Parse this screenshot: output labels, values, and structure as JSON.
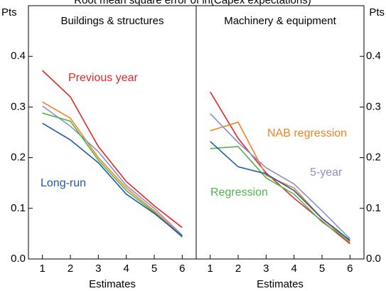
{
  "title": "Root mean square error of ln(Capex expectations)",
  "chart_data": [
    {
      "type": "line",
      "title": "Buildings & structures",
      "y_label": "Pts",
      "x_label": "Estimates",
      "x": [
        1,
        2,
        3,
        4,
        5,
        6
      ],
      "xlim": [
        0.5,
        6.5
      ],
      "xticks": [
        1,
        2,
        3,
        4,
        5,
        6
      ],
      "ylim": [
        0,
        0.5
      ],
      "yticks": [
        {
          "value": 0,
          "label": "0.0"
        },
        0.1,
        0.2,
        0.3,
        0.4
      ],
      "series": [
        {
          "name": "Previous year",
          "color": "#e8262a",
          "values": [
            0.372,
            0.32,
            0.222,
            0.153,
            0.105,
            0.062
          ]
        },
        {
          "color": "#f58220",
          "values": [
            0.31,
            0.278,
            0.2,
            0.14,
            0.095,
            0.045
          ]
        },
        {
          "color": "#8d8fcf",
          "values": [
            0.302,
            0.262,
            0.212,
            0.145,
            0.1,
            0.047
          ]
        },
        {
          "color": "#4db848",
          "values": [
            0.288,
            0.272,
            0.195,
            0.135,
            0.092,
            0.043
          ]
        },
        {
          "name": "Long-run",
          "color": "#1f5ba8",
          "values": [
            0.268,
            0.235,
            0.19,
            0.128,
            0.09,
            0.045
          ]
        }
      ]
    },
    {
      "type": "line",
      "title": "Machinery & equipment",
      "y_label": "Pts",
      "x_label": "Estimates",
      "x": [
        1,
        2,
        3,
        4,
        5,
        6
      ],
      "xlim": [
        0.5,
        6.5
      ],
      "xticks": [
        1,
        2,
        3,
        4,
        5,
        6
      ],
      "ylim": [
        0,
        0.5
      ],
      "yticks": [
        {
          "value": 0,
          "label": "0.0"
        },
        0.1,
        0.2,
        0.3,
        0.4
      ],
      "series": [
        {
          "color": "#e8262a",
          "values": [
            0.33,
            0.238,
            0.17,
            0.12,
            0.075,
            0.03
          ]
        },
        {
          "name": "NAB regression",
          "color": "#f58220",
          "values": [
            0.253,
            0.27,
            0.165,
            0.14,
            0.08,
            0.033
          ]
        },
        {
          "name": "5-year",
          "color": "#8d8fcf",
          "values": [
            0.287,
            0.23,
            0.18,
            0.148,
            0.095,
            0.04
          ]
        },
        {
          "name": "Regression",
          "color": "#4db848",
          "values": [
            0.218,
            0.222,
            0.16,
            0.128,
            0.073,
            0.035
          ]
        },
        {
          "color": "#1f5ba8",
          "values": [
            0.232,
            0.182,
            0.168,
            0.135,
            0.08,
            0.037
          ]
        }
      ]
    }
  ]
}
